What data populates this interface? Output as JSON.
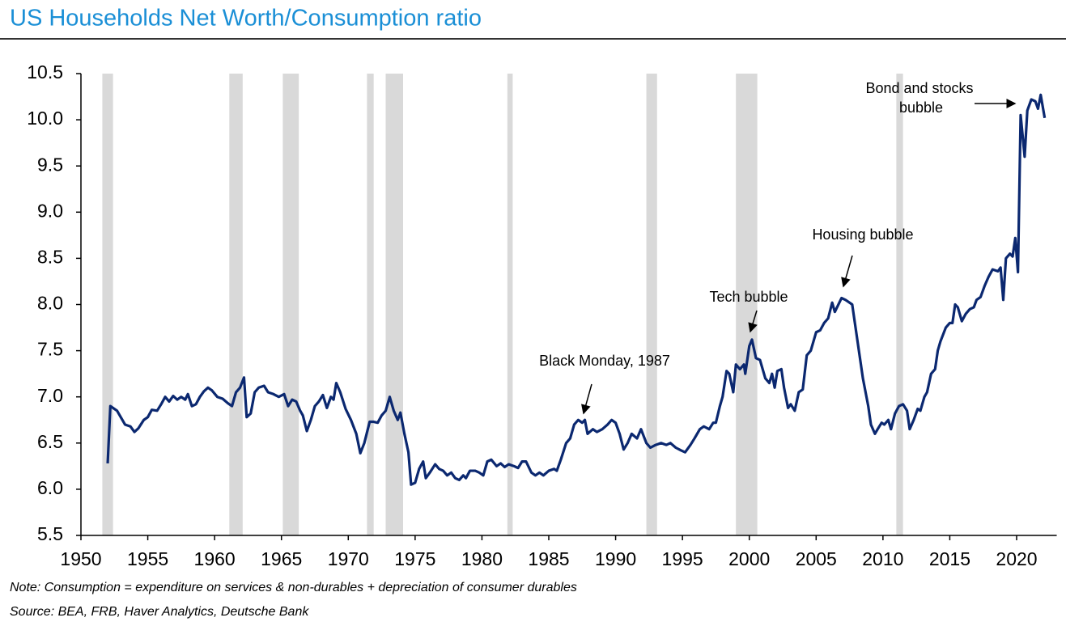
{
  "chart_data": {
    "type": "line",
    "title": "US Households Net Worth/Consumption ratio",
    "note": "Note: Consumption = expenditure on services & non-durables + depreciation of consumer durables",
    "source": "Source: BEA, FRB, Haver Analytics, Deutsche Bank",
    "annotations": [
      "Black Monday, 1987",
      "Tech bubble",
      "Housing bubble",
      [
        "Bond and stocks",
        "bubble"
      ]
    ],
    "recessions": [
      [
        1951.6,
        1952.4
      ],
      [
        1961.1,
        1962.1
      ],
      [
        1965.1,
        1966.3
      ],
      [
        1971.4,
        1971.9
      ],
      [
        1972.8,
        1974.1
      ],
      [
        1981.9,
        1982.3
      ],
      [
        1992.3,
        1993.1
      ],
      [
        1999.0,
        2000.6
      ],
      [
        2011.0,
        2011.5
      ]
    ],
    "recession_color": "#d9d9d9",
    "xlim": [
      1950,
      2023
    ],
    "xticks": [
      1950,
      1955,
      1960,
      1965,
      1970,
      1975,
      1980,
      1985,
      1990,
      1995,
      2000,
      2005,
      2010,
      2015,
      2020
    ],
    "ylim": [
      5.5,
      10.5
    ],
    "yticks": [
      5.5,
      {
        "value": 6,
        "label": "6.0"
      },
      6.5,
      {
        "value": 7,
        "label": "7.0"
      },
      7.5,
      {
        "value": 8,
        "label": "8.0"
      },
      8.5,
      {
        "value": 9,
        "label": "9.0"
      },
      9.5,
      {
        "value": 10,
        "label": "10.0"
      },
      10.5
    ],
    "grid": false,
    "series": [
      {
        "color": "#0b2870",
        "x": [
          1952.0,
          1952.2,
          1952.7,
          1953.3,
          1953.7,
          1954.0,
          1954.3,
          1954.7,
          1955.0,
          1955.3,
          1955.7,
          1956.0,
          1956.3,
          1956.6,
          1956.9,
          1957.2,
          1957.5,
          1957.8,
          1958.0,
          1958.3,
          1958.6,
          1958.9,
          1959.2,
          1959.5,
          1959.8,
          1960.2,
          1960.6,
          1961.0,
          1961.3,
          1961.6,
          1961.9,
          1962.2,
          1962.4,
          1962.7,
          1963.0,
          1963.3,
          1963.7,
          1964.0,
          1964.4,
          1964.8,
          1965.2,
          1965.5,
          1965.8,
          1966.1,
          1966.4,
          1966.6,
          1966.9,
          1967.2,
          1967.5,
          1967.8,
          1968.1,
          1968.4,
          1968.7,
          1968.9,
          1969.1,
          1969.4,
          1969.8,
          1970.2,
          1970.6,
          1970.9,
          1971.2,
          1971.6,
          1971.9,
          1972.2,
          1972.5,
          1972.8,
          1973.1,
          1973.4,
          1973.7,
          1973.9,
          1974.2,
          1974.5,
          1974.7,
          1975.0,
          1975.3,
          1975.6,
          1975.8,
          1976.1,
          1976.5,
          1976.8,
          1977.1,
          1977.4,
          1977.7,
          1978.0,
          1978.3,
          1978.6,
          1978.8,
          1979.1,
          1979.5,
          1979.8,
          1980.1,
          1980.4,
          1980.7,
          1981.1,
          1981.4,
          1981.7,
          1982.0,
          1982.4,
          1982.7,
          1983.0,
          1983.3,
          1983.7,
          1984.0,
          1984.3,
          1984.6,
          1985.0,
          1985.4,
          1985.6,
          1985.9,
          1986.3,
          1986.6,
          1986.9,
          1987.2,
          1987.5,
          1987.7,
          1987.9,
          1988.3,
          1988.6,
          1989.0,
          1989.4,
          1989.7,
          1990.0,
          1990.3,
          1990.6,
          1990.9,
          1991.2,
          1991.6,
          1991.9,
          1992.3,
          1992.6,
          1993.0,
          1993.4,
          1993.8,
          1994.1,
          1994.5,
          1994.9,
          1995.2,
          1995.6,
          1995.9,
          1996.3,
          1996.6,
          1997.0,
          1997.3,
          1997.5,
          1997.8,
          1998.0,
          1998.3,
          1998.5,
          1998.8,
          1999.0,
          1999.3,
          1999.6,
          1999.7,
          2000.0,
          2000.2,
          2000.5,
          2000.8,
          2001.2,
          2001.5,
          2001.7,
          2001.9,
          2002.1,
          2002.4,
          2002.6,
          2002.9,
          2003.1,
          2003.4,
          2003.7,
          2004.0,
          2004.3,
          2004.6,
          2005.0,
          2005.3,
          2005.6,
          2005.9,
          2006.2,
          2006.4,
          2006.6,
          2006.9,
          2007.2,
          2007.5,
          2007.7,
          2007.9,
          2008.2,
          2008.5,
          2008.9,
          2009.1,
          2009.4,
          2009.6,
          2009.9,
          2010.1,
          2010.4,
          2010.6,
          2010.9,
          2011.2,
          2011.5,
          2011.8,
          2012.0,
          2012.3,
          2012.6,
          2012.8,
          2013.1,
          2013.3,
          2013.6,
          2013.9,
          2014.1,
          2014.3,
          2014.7,
          2015.0,
          2015.2,
          2015.4,
          2015.6,
          2015.9,
          2016.2,
          2016.5,
          2016.8,
          2017.0,
          2017.3,
          2017.6,
          2017.9,
          2018.2,
          2018.6,
          2018.8,
          2019.0,
          2019.2,
          2019.5,
          2019.7,
          2019.9,
          2020.1,
          2020.3,
          2020.6,
          2020.8,
          2021.1,
          2021.4,
          2021.6,
          2021.8,
          2022.1
        ],
        "values": [
          6.28,
          6.9,
          6.85,
          6.7,
          6.68,
          6.62,
          6.66,
          6.75,
          6.78,
          6.86,
          6.85,
          6.92,
          7.0,
          6.95,
          7.01,
          6.97,
          7.0,
          6.97,
          7.03,
          6.9,
          6.92,
          7.0,
          7.06,
          7.1,
          7.07,
          7.0,
          6.98,
          6.93,
          6.9,
          7.05,
          7.1,
          7.21,
          6.78,
          6.82,
          7.05,
          7.1,
          7.12,
          7.05,
          7.03,
          7.0,
          7.03,
          6.9,
          6.97,
          6.95,
          6.85,
          6.8,
          6.63,
          6.75,
          6.9,
          6.95,
          7.02,
          6.88,
          7.0,
          6.97,
          7.15,
          7.05,
          6.87,
          6.75,
          6.6,
          6.39,
          6.5,
          6.73,
          6.73,
          6.72,
          6.8,
          6.85,
          7.0,
          6.85,
          6.75,
          6.83,
          6.6,
          6.4,
          6.05,
          6.07,
          6.22,
          6.3,
          6.12,
          6.18,
          6.27,
          6.22,
          6.2,
          6.15,
          6.18,
          6.12,
          6.1,
          6.15,
          6.12,
          6.2,
          6.2,
          6.18,
          6.15,
          6.3,
          6.32,
          6.25,
          6.28,
          6.24,
          6.27,
          6.25,
          6.23,
          6.3,
          6.3,
          6.18,
          6.15,
          6.18,
          6.15,
          6.2,
          6.22,
          6.2,
          6.32,
          6.5,
          6.55,
          6.7,
          6.75,
          6.72,
          6.75,
          6.6,
          6.65,
          6.62,
          6.65,
          6.7,
          6.75,
          6.72,
          6.6,
          6.43,
          6.5,
          6.6,
          6.55,
          6.65,
          6.5,
          6.45,
          6.48,
          6.5,
          6.48,
          6.5,
          6.45,
          6.42,
          6.4,
          6.48,
          6.55,
          6.65,
          6.68,
          6.65,
          6.72,
          6.72,
          6.9,
          7.0,
          7.28,
          7.25,
          7.05,
          7.35,
          7.3,
          7.35,
          7.25,
          7.55,
          7.62,
          7.42,
          7.4,
          7.2,
          7.15,
          7.25,
          7.1,
          7.28,
          7.3,
          7.1,
          6.88,
          6.92,
          6.85,
          7.05,
          7.08,
          7.45,
          7.5,
          7.7,
          7.72,
          7.8,
          7.85,
          8.02,
          7.92,
          7.98,
          8.07,
          8.05,
          8.02,
          8.0,
          7.8,
          7.5,
          7.2,
          6.9,
          6.7,
          6.6,
          6.65,
          6.72,
          6.7,
          6.75,
          6.65,
          6.82,
          6.9,
          6.92,
          6.85,
          6.65,
          6.75,
          6.87,
          6.85,
          7.0,
          7.05,
          7.25,
          7.3,
          7.5,
          7.6,
          7.75,
          7.8,
          7.8,
          8.0,
          7.97,
          7.82,
          7.9,
          7.95,
          7.97,
          8.05,
          8.08,
          8.2,
          8.3,
          8.38,
          8.36,
          8.4,
          8.05,
          8.5,
          8.55,
          8.52,
          8.72,
          8.35,
          10.05,
          9.6,
          10.1,
          10.22,
          10.2,
          10.12,
          10.27,
          10.02
        ]
      }
    ]
  }
}
